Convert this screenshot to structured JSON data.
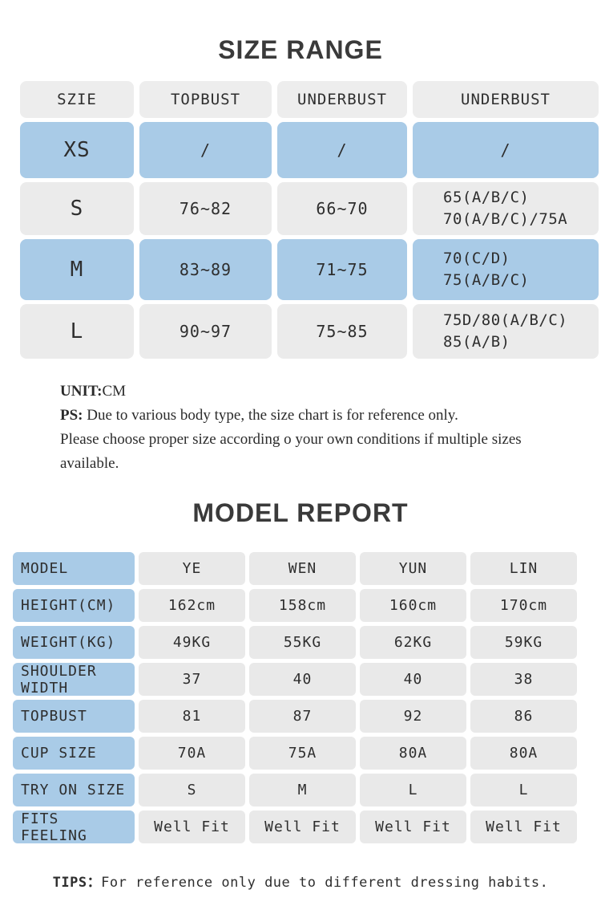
{
  "size_range": {
    "title": "SIZE RANGE",
    "headers": [
      "SZIE",
      "TOPBUST",
      "UNDERBUST",
      "UNDERBUST"
    ],
    "rows": [
      {
        "size": "XS",
        "values": [
          "/",
          "/",
          "/"
        ]
      },
      {
        "size": "S",
        "values": [
          "76~82",
          "66~70",
          "65(A/B/C)\n70(A/B/C)/75A"
        ]
      },
      {
        "size": "M",
        "values": [
          "83~89",
          "71~75",
          "70(C/D)\n75(A/B/C)"
        ]
      },
      {
        "size": "L",
        "values": [
          "90~97",
          "75~85",
          "75D/80(A/B/C)\n85(A/B)"
        ]
      }
    ]
  },
  "notes": {
    "unit_label": "UNIT:",
    "unit_value": "CM",
    "ps_label": "PS:",
    "ps_text": " Due to various body type, the size chart is for reference only.",
    "advice": "Please choose proper size according o your own conditions if multiple sizes available."
  },
  "model_report": {
    "title": "MODEL REPORT",
    "rows": [
      {
        "label": "MODEL",
        "values": [
          "YE",
          "WEN",
          "YUN",
          "LIN"
        ]
      },
      {
        "label": "HEIGHT(CM)",
        "values": [
          "162cm",
          "158cm",
          "160cm",
          "170cm"
        ]
      },
      {
        "label": "WEIGHT(KG)",
        "values": [
          "49KG",
          "55KG",
          "62KG",
          "59KG"
        ]
      },
      {
        "label": "SHOULDER WIDTH",
        "values": [
          "37",
          "40",
          "40",
          "38"
        ]
      },
      {
        "label": "TOPBUST",
        "values": [
          "81",
          "87",
          "92",
          "86"
        ]
      },
      {
        "label": "CUP SIZE",
        "values": [
          "70A",
          "75A",
          "80A",
          "80A"
        ]
      },
      {
        "label": "TRY ON SIZE",
        "values": [
          "S",
          "M",
          "L",
          "L"
        ]
      },
      {
        "label": "FITS FEELING",
        "values": [
          "Well Fit",
          "Well Fit",
          "Well Fit",
          "Well Fit"
        ]
      }
    ]
  },
  "tips": {
    "label": "TIPS：",
    "text": "For reference only due to different dressing habits."
  },
  "colors": {
    "highlight_blue": "#a9cbe7",
    "cell_gray": "#ebebeb",
    "header_gray": "#ededed",
    "text_dark": "#2e2e2e"
  }
}
